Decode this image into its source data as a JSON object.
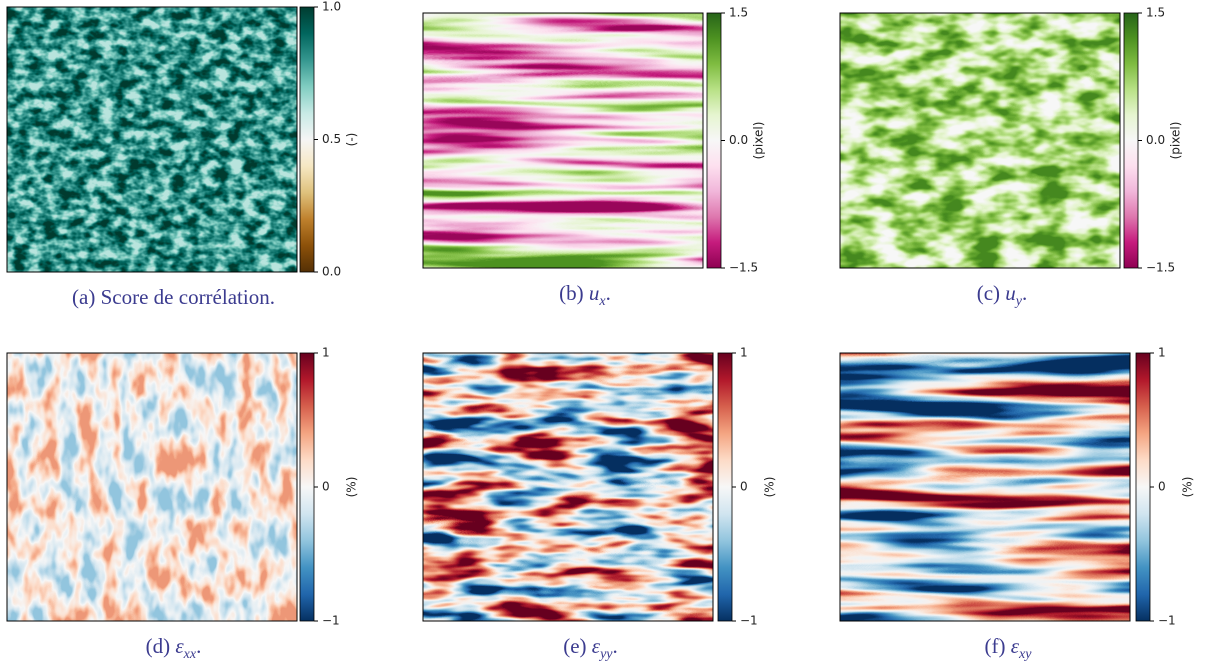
{
  "chart_data": [
    {
      "type": "heatmap",
      "caption": {
        "label": "(a)",
        "text": "Score de corrélation."
      },
      "colorbar_label": "(-)",
      "colors": [
        "#543005",
        "#8c510a",
        "#bf812d",
        "#dfc27d",
        "#f6e8c3",
        "#f5f5f5",
        "#c7eae5",
        "#80cdc1",
        "#35978f",
        "#01665e",
        "#003c30"
      ],
      "clim": [
        0,
        1
      ],
      "cticks": [
        {
          "value": 0,
          "label": "0.0"
        },
        0.5,
        {
          "value": 1,
          "label": "1.0"
        }
      ]
    },
    {
      "type": "heatmap",
      "caption": {
        "label": "(b)",
        "symbol": "u",
        "sub": "x",
        "end": "."
      },
      "colorbar_label": "(pixel)",
      "colors": [
        "#8e0152",
        "#c51b7d",
        "#de77ae",
        "#f1b6da",
        "#fde0ef",
        "#f7f7f7",
        "#e6f5d0",
        "#b8e186",
        "#7fbc41",
        "#4d9221",
        "#276419"
      ],
      "clim": [
        -1.5,
        1.5
      ],
      "cticks": [
        {
          "value": -1.5,
          "label": "−1.5"
        },
        {
          "value": 0,
          "label": "0.0"
        },
        1.5
      ]
    },
    {
      "type": "heatmap",
      "caption": {
        "label": "(c)",
        "symbol": "u",
        "sub": "y",
        "end": "."
      },
      "colorbar_label": "(pixel)",
      "colors": [
        "#8e0152",
        "#c51b7d",
        "#de77ae",
        "#f1b6da",
        "#fde0ef",
        "#f7f7f7",
        "#e6f5d0",
        "#b8e186",
        "#7fbc41",
        "#4d9221",
        "#276419"
      ],
      "clim": [
        -1.5,
        1.5
      ],
      "cticks": [
        {
          "value": -1.5,
          "label": "−1.5"
        },
        {
          "value": 0,
          "label": "0.0"
        },
        1.5
      ]
    },
    {
      "type": "heatmap",
      "caption": {
        "label": "(d)",
        "symbol": "ε",
        "sub": "xx",
        "end": "."
      },
      "colorbar_label": "(%)",
      "colors": [
        "#053061",
        "#2166ac",
        "#4393c3",
        "#92c5de",
        "#d1e5f0",
        "#f7f7f7",
        "#fddbc7",
        "#f4a582",
        "#d6604d",
        "#b2182b",
        "#67001f"
      ],
      "clim": [
        -1,
        1
      ],
      "cticks": [
        {
          "value": -1,
          "label": "−1"
        },
        0,
        1
      ]
    },
    {
      "type": "heatmap",
      "caption": {
        "label": "(e)",
        "symbol": "ε",
        "sub": "yy",
        "end": "."
      },
      "colorbar_label": "(%)",
      "colors": [
        "#053061",
        "#2166ac",
        "#4393c3",
        "#92c5de",
        "#d1e5f0",
        "#f7f7f7",
        "#fddbc7",
        "#f4a582",
        "#d6604d",
        "#b2182b",
        "#67001f"
      ],
      "clim": [
        -1,
        1
      ],
      "cticks": [
        {
          "value": -1,
          "label": "−1"
        },
        0,
        1
      ]
    },
    {
      "type": "heatmap",
      "caption": {
        "label": "(f)",
        "symbol": "ε",
        "sub": "xy"
      },
      "colorbar_label": "(%)",
      "colors": [
        "#053061",
        "#2166ac",
        "#4393c3",
        "#92c5de",
        "#d1e5f0",
        "#f7f7f7",
        "#fddbc7",
        "#f4a582",
        "#d6604d",
        "#b2182b",
        "#67001f"
      ],
      "clim": [
        -1,
        1
      ],
      "cticks": [
        {
          "value": -1,
          "label": "−1"
        },
        0,
        1
      ]
    }
  ]
}
